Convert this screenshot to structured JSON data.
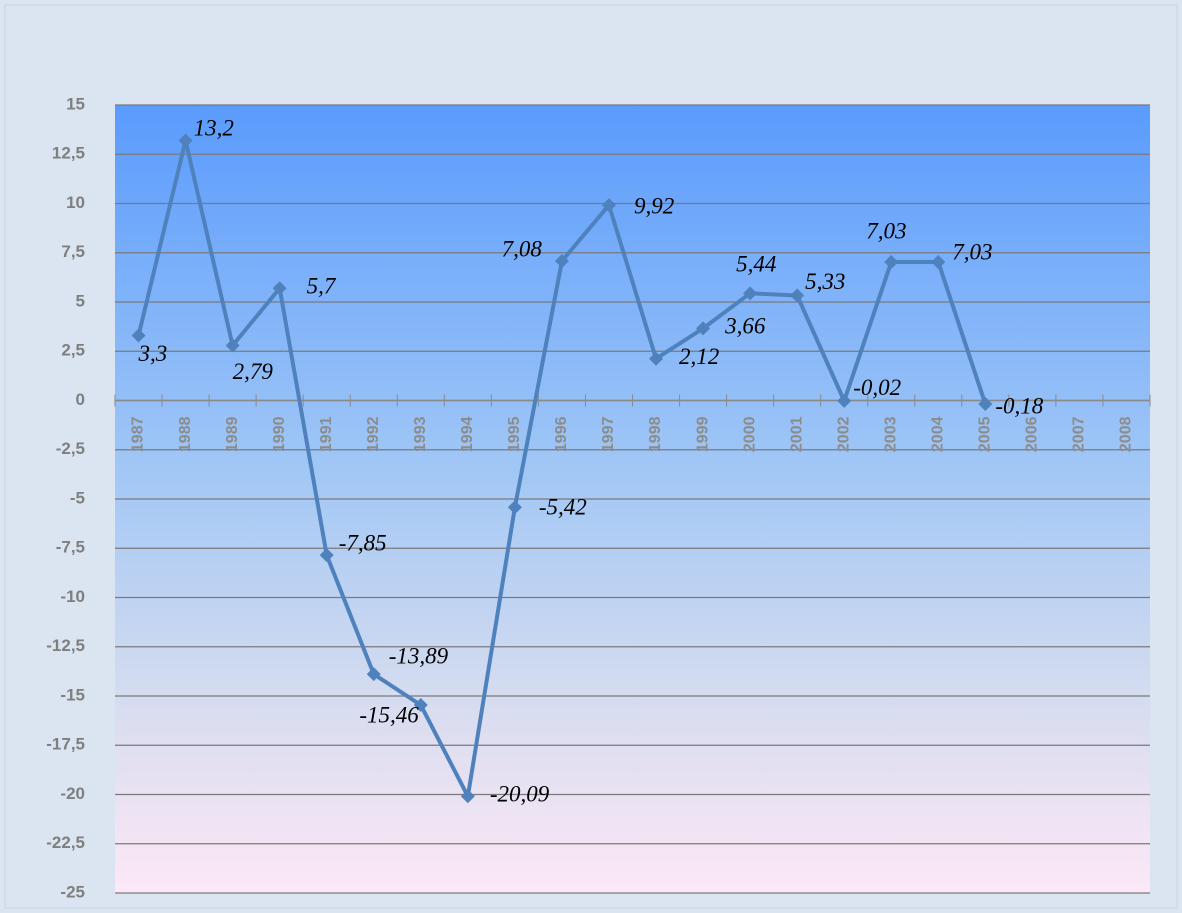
{
  "chart_data": {
    "type": "line",
    "categories": [
      "1987",
      "1988",
      "1989",
      "1990",
      "1991",
      "1992",
      "1993",
      "1994",
      "1995",
      "1996",
      "1997",
      "1998",
      "1999",
      "2000",
      "2001",
      "2002",
      "2003",
      "2004",
      "2005",
      "2006",
      "2007",
      "2008"
    ],
    "series": [
      {
        "color": "#4f81bd",
        "values": [
          3.3,
          13.2,
          2.79,
          5.7,
          -7.85,
          -13.89,
          -15.46,
          -20.09,
          -5.42,
          7.08,
          9.92,
          2.12,
          3.66,
          5.44,
          5.33,
          -0.02,
          7.03,
          7.03,
          -0.18,
          null,
          null,
          null
        ],
        "value_labels": [
          "3,3",
          "13,2",
          "2,79",
          "5,7",
          "-7,85",
          "-13,89",
          "-15,46",
          "-20,09",
          "-5,42",
          "7,08",
          "9,92",
          "2,12",
          "3,66",
          "5,44",
          "5,33",
          "-0,02",
          "7,03",
          "7,03",
          "-0,18",
          null,
          null,
          null
        ]
      }
    ],
    "ylim": [
      -25,
      15
    ],
    "yticks": [
      {
        "value": -25,
        "label": "-25"
      },
      {
        "value": -22.5,
        "label": "-22,5"
      },
      {
        "value": -20,
        "label": "-20"
      },
      {
        "value": -17.5,
        "label": "-17,5"
      },
      {
        "value": -15,
        "label": "-15"
      },
      {
        "value": -12.5,
        "label": "-12,5"
      },
      {
        "value": -10,
        "label": "-10"
      },
      {
        "value": -7.5,
        "label": "-7,5"
      },
      {
        "value": -5,
        "label": "-5"
      },
      {
        "value": -2.5,
        "label": "-2,5"
      },
      0,
      {
        "value": 2.5,
        "label": "2,5"
      },
      5,
      {
        "value": 7.5,
        "label": "7,5"
      },
      10,
      {
        "value": 12.5,
        "label": "12,5"
      },
      15
    ],
    "grid": true
  }
}
